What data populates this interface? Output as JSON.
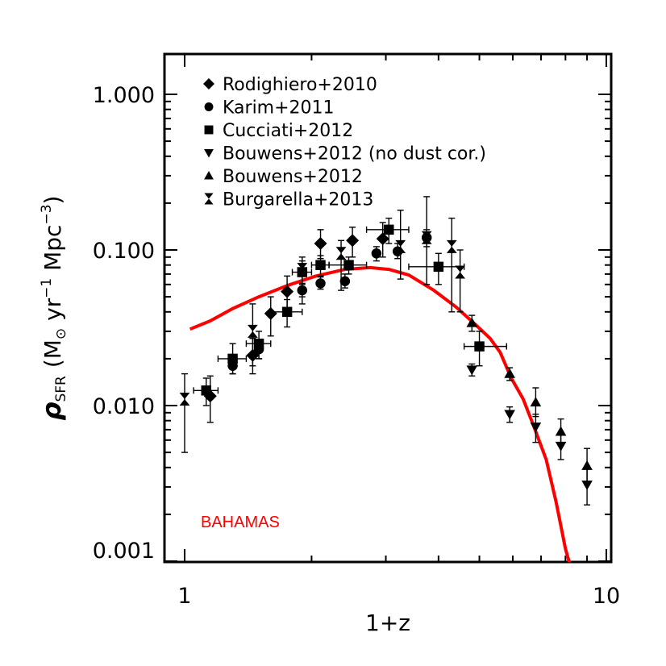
{
  "chart_data": {
    "type": "scatter",
    "title": "",
    "xlabel": "1+z",
    "ylabel_parts": {
      "rho": "ρ",
      "sub": "SFR",
      "open": "(M",
      "sun": "⊙",
      "mid": " yr",
      "exp1": "−1",
      "mpc": " Mpc",
      "exp2": "−3",
      "close": ")"
    },
    "xscale": "log",
    "yscale": "log",
    "xlim": [
      1,
      10
    ],
    "ylim": [
      0.001,
      2
    ],
    "x_ticks": [
      {
        "value": 1,
        "label": "1"
      },
      {
        "value": 10,
        "label": "10"
      }
    ],
    "y_ticks": [
      {
        "value": 0.001,
        "label": "0.001"
      },
      {
        "value": 0.01,
        "label": "0.010"
      },
      {
        "value": 0.1,
        "label": "0.100"
      },
      {
        "value": 1,
        "label": "1.000"
      }
    ],
    "legend_position": "top-left",
    "annotation": {
      "text": "BAHAMAS",
      "color": "#ff0000"
    },
    "series": [
      {
        "name": "Rodighiero+2010",
        "marker": "diamond",
        "points": [
          {
            "x": 1.15,
            "y": 0.0115,
            "ylo": 0.0078,
            "yhi": 0.0155
          },
          {
            "x": 1.45,
            "y": 0.021,
            "ylo": 0.016,
            "yhi": 0.027
          },
          {
            "x": 1.6,
            "y": 0.039,
            "ylo": 0.028,
            "yhi": 0.05
          },
          {
            "x": 1.75,
            "y": 0.054,
            "ylo": 0.041,
            "yhi": 0.068
          },
          {
            "x": 2.1,
            "y": 0.11,
            "ylo": 0.088,
            "yhi": 0.135
          },
          {
            "x": 2.5,
            "y": 0.115,
            "ylo": 0.09,
            "yhi": 0.14
          },
          {
            "x": 2.95,
            "y": 0.118,
            "ylo": 0.09,
            "yhi": 0.15
          }
        ]
      },
      {
        "name": "Karim+2011",
        "marker": "circle",
        "points": [
          {
            "x": 1.3,
            "y": 0.018,
            "ylo": 0.016,
            "yhi": 0.02
          },
          {
            "x": 1.5,
            "y": 0.023,
            "ylo": 0.02,
            "yhi": 0.026
          },
          {
            "x": 1.9,
            "y": 0.055,
            "ylo": 0.05,
            "yhi": 0.061
          },
          {
            "x": 2.1,
            "y": 0.061,
            "ylo": 0.056,
            "yhi": 0.067
          },
          {
            "x": 2.4,
            "y": 0.063,
            "ylo": 0.057,
            "yhi": 0.07
          },
          {
            "x": 2.85,
            "y": 0.095,
            "ylo": 0.085,
            "yhi": 0.105
          },
          {
            "x": 3.2,
            "y": 0.098,
            "ylo": 0.088,
            "yhi": 0.11
          },
          {
            "x": 3.75,
            "y": 0.12,
            "ylo": 0.105,
            "yhi": 0.135
          }
        ]
      },
      {
        "name": "Cucciati+2012",
        "marker": "square",
        "points": [
          {
            "x": 1.125,
            "y": 0.0125,
            "xlo": 1.05,
            "xhi": 1.2,
            "ylo": 0.01,
            "yhi": 0.015
          },
          {
            "x": 1.3,
            "y": 0.02,
            "xlo": 1.2,
            "xhi": 1.4,
            "ylo": 0.016,
            "yhi": 0.025
          },
          {
            "x": 1.5,
            "y": 0.025,
            "xlo": 1.4,
            "xhi": 1.6,
            "ylo": 0.02,
            "yhi": 0.03
          },
          {
            "x": 1.75,
            "y": 0.04,
            "xlo": 1.6,
            "xhi": 1.9,
            "ylo": 0.032,
            "yhi": 0.048
          },
          {
            "x": 1.9,
            "y": 0.072,
            "xlo": 1.8,
            "xhi": 2.0,
            "ylo": 0.06,
            "yhi": 0.085
          },
          {
            "x": 2.1,
            "y": 0.08,
            "xlo": 2.0,
            "xhi": 2.2,
            "ylo": 0.068,
            "yhi": 0.092
          },
          {
            "x": 2.45,
            "y": 0.08,
            "xlo": 2.2,
            "xhi": 2.7,
            "ylo": 0.07,
            "yhi": 0.09
          },
          {
            "x": 3.05,
            "y": 0.135,
            "xlo": 2.7,
            "xhi": 3.4,
            "ylo": 0.11,
            "yhi": 0.16
          },
          {
            "x": 4.0,
            "y": 0.078,
            "xlo": 3.4,
            "xhi": 4.6,
            "ylo": 0.06,
            "yhi": 0.095
          },
          {
            "x": 5.0,
            "y": 0.024,
            "xlo": 4.6,
            "xhi": 5.8,
            "ylo": 0.018,
            "yhi": 0.03
          }
        ]
      },
      {
        "name": "Bouwens+2012 (no dust cor.)",
        "marker": "triangle-down",
        "points": [
          {
            "x": 4.8,
            "y": 0.017,
            "ylo": 0.0155,
            "yhi": 0.0185
          },
          {
            "x": 5.9,
            "y": 0.0088,
            "ylo": 0.0078,
            "yhi": 0.0098
          },
          {
            "x": 6.8,
            "y": 0.0073,
            "ylo": 0.0058,
            "yhi": 0.0088
          },
          {
            "x": 7.8,
            "y": 0.0055,
            "ylo": 0.0045,
            "yhi": 0.0065
          },
          {
            "x": 9.0,
            "y": 0.0031,
            "ylo": 0.0023,
            "yhi": 0.004
          }
        ]
      },
      {
        "name": "Bouwens+2012",
        "marker": "triangle-up",
        "points": [
          {
            "x": 4.8,
            "y": 0.034,
            "ylo": 0.03,
            "yhi": 0.038
          },
          {
            "x": 5.9,
            "y": 0.016,
            "ylo": 0.0145,
            "yhi": 0.0175
          },
          {
            "x": 6.8,
            "y": 0.0105,
            "ylo": 0.0085,
            "yhi": 0.013
          },
          {
            "x": 7.8,
            "y": 0.0068,
            "ylo": 0.0056,
            "yhi": 0.0082
          },
          {
            "x": 9.0,
            "y": 0.0041,
            "ylo": 0.0031,
            "yhi": 0.0053
          }
        ]
      },
      {
        "name": "Burgarella+2013",
        "marker": "hourglass",
        "points": [
          {
            "x": 1.0,
            "y": 0.011,
            "ylo": 0.005,
            "yhi": 0.016
          },
          {
            "x": 1.45,
            "y": 0.03,
            "ylo": 0.018,
            "yhi": 0.045
          },
          {
            "x": 1.9,
            "y": 0.075,
            "ylo": 0.045,
            "yhi": 0.09
          },
          {
            "x": 2.35,
            "y": 0.095,
            "ylo": 0.055,
            "yhi": 0.115
          },
          {
            "x": 3.25,
            "y": 0.105,
            "ylo": 0.065,
            "yhi": 0.18
          },
          {
            "x": 3.75,
            "y": 0.12,
            "ylo": 0.06,
            "yhi": 0.22
          },
          {
            "x": 4.3,
            "y": 0.105,
            "ylo": 0.04,
            "yhi": 0.16
          },
          {
            "x": 4.5,
            "y": 0.072,
            "ylo": 0.04,
            "yhi": 0.1
          }
        ]
      }
    ],
    "model_line": {
      "name": "BAHAMAS",
      "color": "#ff0000",
      "points": [
        [
          1.03,
          0.031
        ],
        [
          1.15,
          0.035
        ],
        [
          1.3,
          0.042
        ],
        [
          1.5,
          0.05
        ],
        [
          1.75,
          0.059
        ],
        [
          2.05,
          0.068
        ],
        [
          2.4,
          0.075
        ],
        [
          2.75,
          0.077
        ],
        [
          3.05,
          0.075
        ],
        [
          3.4,
          0.069
        ],
        [
          3.9,
          0.055
        ],
        [
          4.4,
          0.043
        ],
        [
          4.9,
          0.033
        ],
        [
          5.3,
          0.027
        ],
        [
          5.6,
          0.022
        ],
        [
          5.95,
          0.015
        ],
        [
          6.35,
          0.011
        ],
        [
          6.75,
          0.0072
        ],
        [
          7.2,
          0.0045
        ],
        [
          7.6,
          0.0024
        ],
        [
          8.0,
          0.0012
        ],
        [
          8.2,
          0.00095
        ]
      ]
    }
  }
}
